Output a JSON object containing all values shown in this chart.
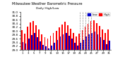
{
  "title": "Milwaukee Weather Barometric Pressure",
  "subtitle": "Daily High/Low",
  "legend_high": "High",
  "legend_low": "Low",
  "ylim": [
    29.0,
    31.0
  ],
  "ytick_vals": [
    29.0,
    29.2,
    29.4,
    29.6,
    29.8,
    30.0,
    30.2,
    30.4,
    30.6,
    30.8,
    31.0
  ],
  "ytick_labels": [
    "29.0",
    "29.2",
    "29.4",
    "29.6",
    "29.8",
    "30.0",
    "30.2",
    "30.4",
    "30.6",
    "30.8",
    "31.0"
  ],
  "color_high": "#ff0000",
  "color_low": "#0000cc",
  "background": "#ffffff",
  "highs": [
    30.05,
    29.88,
    30.25,
    30.45,
    30.55,
    30.3,
    30.08,
    29.82,
    29.68,
    29.6,
    29.75,
    29.92,
    30.02,
    30.2,
    30.35,
    30.48,
    30.32,
    30.12,
    29.9,
    29.72,
    29.85,
    30.05,
    30.22,
    30.38,
    30.52,
    30.58,
    30.42,
    30.28,
    30.1,
    29.92,
    30.1
  ],
  "lows": [
    29.42,
    29.35,
    29.62,
    29.78,
    29.92,
    29.68,
    29.45,
    29.28,
    29.18,
    29.1,
    29.25,
    29.4,
    29.52,
    29.7,
    29.82,
    29.92,
    29.75,
    29.6,
    29.4,
    29.22,
    29.38,
    29.55,
    29.7,
    29.82,
    29.92,
    29.98,
    29.82,
    29.68,
    29.52,
    29.32,
    29.48
  ],
  "dashed_indices": [
    20,
    21,
    22,
    23,
    24
  ],
  "n_bars": 31
}
